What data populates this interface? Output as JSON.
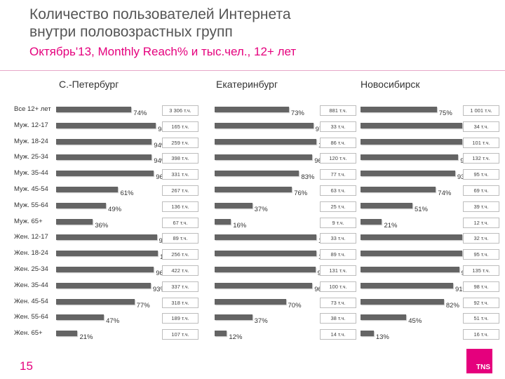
{
  "header": {
    "title_line1": "Количество пользователей Интернета",
    "title_line2": "внутри половозрастных групп",
    "subtitle": "Октябрь'13, Monthly Reach% и тыс.чел., 12+ лет"
  },
  "page_number": "15",
  "logo_text": "TNS",
  "colors": {
    "accent": "#e5007d",
    "bar": "#646464"
  },
  "chart_data": {
    "type": "bar",
    "orientation": "horizontal",
    "categories": [
      "Все 12+ лет",
      "Муж. 12-17",
      "Муж. 18-24",
      "Муж. 25-34",
      "Муж. 35-44",
      "Муж. 45-54",
      "Муж. 55-64",
      "Муж. 65+",
      "Жен. 12-17",
      "Жен. 18-24",
      "Жен. 25-34",
      "Жен. 35-44",
      "Жен. 45-54",
      "Жен. 55-64",
      "Жен. 65+"
    ],
    "ylim": [
      0,
      100
    ],
    "series": [
      {
        "name": "С.-Петербург",
        "values": [
          74,
          98,
          94,
          94,
          96,
          61,
          49,
          36,
          99,
          100,
          96,
          93,
          77,
          47,
          21
        ],
        "value_labels": [
          "74%",
          "98%",
          "94%",
          "94%",
          "96%",
          "61%",
          "49%",
          "36%",
          "99%",
          "100%",
          "96%",
          "93%",
          "77%",
          "47%",
          "21%"
        ],
        "abs_labels": [
          "3 306 т.ч.",
          "165 т.ч.",
          "259 т.ч.",
          "398 т.ч.",
          "331 т.ч.",
          "267 т.ч.",
          "136 т.ч.",
          "67 т.ч.",
          "89 т.ч.",
          "256 т.ч.",
          "422 т.ч.",
          "337 т.ч.",
          "318 т.ч.",
          "189 т.ч.",
          "107 т.ч."
        ]
      },
      {
        "name": "Екатеринбург",
        "values": [
          73,
          97,
          100,
          96,
          83,
          76,
          37,
          16,
          100,
          100,
          99,
          96,
          70,
          37,
          12
        ],
        "value_labels": [
          "73%",
          "97%",
          "100%",
          "96%",
          "83%",
          "76%",
          "37%",
          "16%",
          "100%",
          "100%",
          "99%",
          "96%",
          "70%",
          "37%",
          "12%"
        ],
        "abs_labels": [
          "881 т.ч.",
          "33 т.ч.",
          "86 т.ч.",
          "120 т.ч.",
          "77 т.ч.",
          "63 т.ч.",
          "25 т.ч.",
          "9 т.ч.",
          "33 т.ч.",
          "89 т.ч.",
          "131 т.ч.",
          "100 т.ч.",
          "73 т.ч.",
          "38 т.ч.",
          "14 т.ч."
        ]
      },
      {
        "name": "Новосибирск",
        "values": [
          75,
          100,
          100,
          96,
          93,
          74,
          51,
          21,
          100,
          100,
          97,
          91,
          82,
          45,
          13
        ],
        "value_labels": [
          "75%",
          "100%",
          "100%",
          "96%",
          "93%",
          "74%",
          "51%",
          "21%",
          "100%",
          "100%",
          "97%",
          "91%",
          "82%",
          "45%",
          "13%"
        ],
        "abs_labels": [
          "1 001 т.ч.",
          "34 т.ч.",
          "101 т.ч.",
          "132 т.ч.",
          "95 т.ч.",
          "69 т.ч.",
          "39 т.ч.",
          "12 т.ч.",
          "32 т.ч.",
          "95 т.ч.",
          "135 т.ч.",
          "98 т.ч.",
          "92 т.ч.",
          "51 т.ч.",
          "16 т.ч."
        ]
      }
    ]
  }
}
